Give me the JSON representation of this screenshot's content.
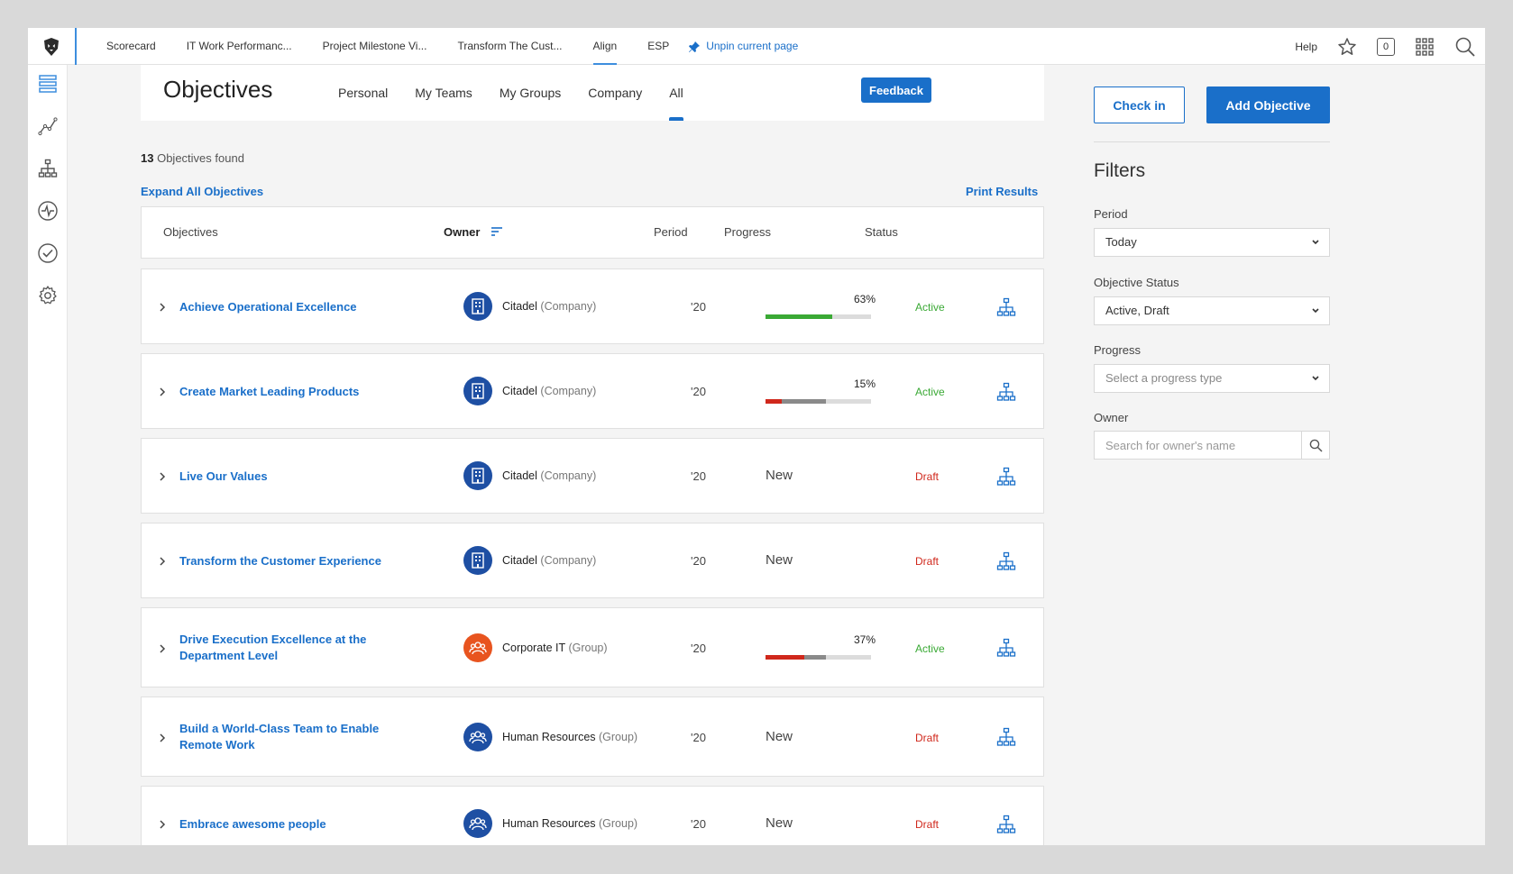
{
  "topbar": {
    "tabs": [
      {
        "label": "Scorecard"
      },
      {
        "label": "IT Work Performanc..."
      },
      {
        "label": "Project Milestone Vi..."
      },
      {
        "label": "Transform The Cust..."
      },
      {
        "label": "Align"
      },
      {
        "label": "ESP"
      }
    ],
    "unpin_label": "Unpin current page",
    "help_label": "Help",
    "notification_count": "0"
  },
  "header": {
    "title": "Objectives",
    "tabs": [
      {
        "label": "Personal"
      },
      {
        "label": "My Teams"
      },
      {
        "label": "My Groups"
      },
      {
        "label": "Company"
      },
      {
        "label": "All"
      }
    ],
    "feedback_label": "Feedback"
  },
  "results": {
    "count": "13",
    "count_suffix": "Objectives found",
    "expand_label": "Expand All Objectives",
    "print_label": "Print Results"
  },
  "table": {
    "columns": {
      "objectives": "Objectives",
      "owner": "Owner",
      "period": "Period",
      "progress": "Progress",
      "status": "Status"
    },
    "rows": [
      {
        "name": "Achieve Operational Excellence",
        "owner": "Citadel",
        "owner_type": "(Company)",
        "period": "'20",
        "progress": "63%",
        "status": "Active"
      },
      {
        "name": "Create Market Leading Products",
        "owner": "Citadel",
        "owner_type": "(Company)",
        "period": "'20",
        "progress": "15%",
        "status": "Active"
      },
      {
        "name": "Live Our Values",
        "owner": "Citadel",
        "owner_type": "(Company)",
        "period": "'20",
        "progress": "New",
        "status": "Draft"
      },
      {
        "name": "Transform the Customer Experience",
        "owner": "Citadel",
        "owner_type": "(Company)",
        "period": "'20",
        "progress": "New",
        "status": "Draft"
      },
      {
        "name": "Drive Execution Excellence at the Department Level",
        "owner": "Corporate IT",
        "owner_type": "(Group)",
        "period": "'20",
        "progress": "37%",
        "status": "Active"
      },
      {
        "name": "Build a World-Class Team to Enable Remote Work",
        "owner": "Human Resources",
        "owner_type": "(Group)",
        "period": "'20",
        "progress": "New",
        "status": "Draft"
      },
      {
        "name": "Embrace awesome people",
        "owner": "Human Resources",
        "owner_type": "(Group)",
        "period": "'20",
        "progress": "New",
        "status": "Draft"
      }
    ],
    "progress_fill": [
      0.63,
      0.15,
      null,
      null,
      0.37,
      null,
      null
    ],
    "status_colors": {
      "Active": "#3aa935",
      "Draft": "#d0281c"
    }
  },
  "actions": {
    "checkin_label": "Check in",
    "add_label": "Add Objective"
  },
  "filters": {
    "title": "Filters",
    "period_label": "Period",
    "period_value": "Today",
    "status_label": "Objective Status",
    "status_value": "Active, Draft",
    "progress_label": "Progress",
    "progress_placeholder": "Select a progress type",
    "owner_label": "Owner",
    "owner_placeholder": "Search for owner's name"
  },
  "colors": {
    "accent": "#1a6fc9",
    "progress_green": "#3aa935",
    "progress_red": "#d0281c",
    "progress_gray": "#8a8a8a",
    "company_avatar": "#1e4fa3",
    "group_avatar_it": "#e8541f",
    "group_avatar_hr": "#1e4fa3"
  }
}
